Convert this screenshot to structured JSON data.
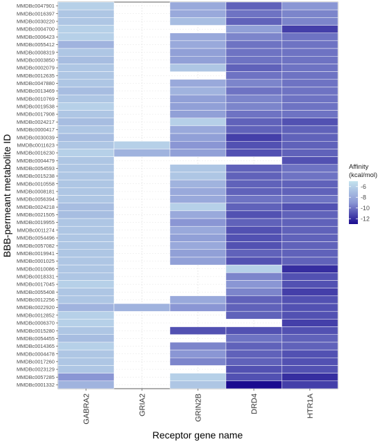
{
  "chart_data": {
    "type": "heatmap",
    "xlabel": "Receptor gene name",
    "ylabel": "BBB-permeant metabolite ID",
    "legend": {
      "title_lines": [
        "Affinity",
        "(kcal/mol)"
      ],
      "ticks": [
        -6,
        -8,
        -10,
        -12
      ],
      "range": [
        -13,
        -5
      ],
      "placement": "right",
      "color_low": "#1a0b8f",
      "color_mid": "#8a96d4",
      "color_high": "#c4e3ee"
    },
    "grid": true,
    "columns": [
      "GABRA2",
      "GRIA2",
      "GRIN2B",
      "DRD4",
      "HTR1A"
    ],
    "rows": [
      "MMDBc0047901",
      "MMDBc0016397",
      "MMDBc0030220",
      "MMDBc0004700",
      "MMDBc0006423",
      "MMDBc0055412",
      "MMDBc0008319",
      "MMDBc0003850",
      "MMDBc0002079",
      "MMDBc0012635",
      "MMDBc0047880",
      "MMDBc0013469",
      "MMDBc0010769",
      "MMDBc0019538",
      "MMDBc0017908",
      "MMDBc0024217",
      "MMDBc0000417",
      "MMDBc0030039",
      "MMDBc0011623",
      "MMDBc0016230",
      "MMDBc0004479",
      "MMDBc0054593",
      "MMDBc0015238",
      "MMDBc0010558",
      "MMDBc0008181",
      "MMDBc0056394",
      "MMDBc0024218",
      "MMDBc0021505",
      "MMDBc0019955",
      "MMDBc0011274",
      "MMDBc0054496",
      "MMDBc0057082",
      "MMDBc0019941",
      "MMDBc0001025",
      "MMDBc0010086",
      "MMDBc0018331",
      "MMDBc0017045",
      "MMDBc0055408",
      "MMDBc0012256",
      "MMDBc0022920",
      "MMDBc0012852",
      "MMDBc0006370",
      "MMDBc0015280",
      "MMDBc0054455",
      "MMDBc0014365",
      "MMDBc0004478",
      "MMDBc0017260",
      "MMDBc0023129",
      "MMDBc0057285",
      "MMDBc0001332"
    ],
    "values": [
      [
        -6.0,
        null,
        -8.0,
        -10.5,
        -9.0
      ],
      [
        -6.5,
        null,
        -8.0,
        -10.0,
        -9.5
      ],
      [
        -6.5,
        null,
        -7.0,
        -10.5,
        -9.5
      ],
      [
        -6.0,
        null,
        null,
        -8.5,
        -11.5
      ],
      [
        -6.0,
        null,
        -8.0,
        -9.5,
        -10.0
      ],
      [
        -7.5,
        null,
        -8.0,
        -10.0,
        -10.0
      ],
      [
        -6.5,
        null,
        -8.5,
        -10.0,
        -10.0
      ],
      [
        -7.0,
        null,
        -8.5,
        -10.0,
        -10.0
      ],
      [
        -6.5,
        null,
        -6.5,
        -10.5,
        -10.0
      ],
      [
        -6.5,
        null,
        null,
        -10.0,
        -10.0
      ],
      [
        -6.5,
        null,
        -8.0,
        -9.5,
        -10.0
      ],
      [
        -7.0,
        null,
        -7.5,
        -10.0,
        -10.0
      ],
      [
        -6.5,
        null,
        -8.5,
        -9.5,
        -10.0
      ],
      [
        -6.0,
        null,
        -8.5,
        -9.5,
        -10.0
      ],
      [
        -6.5,
        null,
        -8.5,
        -10.0,
        -10.0
      ],
      [
        -7.0,
        null,
        -6.0,
        -10.5,
        -11.0
      ],
      [
        -6.5,
        null,
        -8.0,
        -10.5,
        -10.5
      ],
      [
        -7.0,
        null,
        -8.5,
        -11.5,
        -10.5
      ],
      [
        -6.5,
        -6.0,
        -9.0,
        -11.0,
        -10.5
      ],
      [
        -6.0,
        -7.5,
        -8.5,
        -11.0,
        -10.5
      ],
      [
        -6.5,
        null,
        null,
        null,
        -11.0
      ],
      [
        -6.5,
        null,
        -6.5,
        -10.5,
        -10.0
      ],
      [
        -6.5,
        null,
        -6.5,
        -10.5,
        -10.0
      ],
      [
        -6.5,
        null,
        -7.5,
        -10.5,
        -10.5
      ],
      [
        -6.5,
        null,
        -8.0,
        -10.5,
        -10.5
      ],
      [
        -6.5,
        null,
        -8.0,
        -10.0,
        -10.0
      ],
      [
        -7.0,
        null,
        -6.0,
        -10.5,
        -11.0
      ],
      [
        -7.0,
        null,
        -8.0,
        -11.0,
        -10.5
      ],
      [
        -6.5,
        null,
        -9.0,
        -10.5,
        -10.5
      ],
      [
        -6.5,
        null,
        -8.0,
        -11.0,
        -10.5
      ],
      [
        -6.5,
        null,
        -8.5,
        -11.0,
        -10.5
      ],
      [
        -6.5,
        null,
        -8.0,
        -11.0,
        -10.5
      ],
      [
        -6.5,
        null,
        -8.5,
        -10.5,
        -10.5
      ],
      [
        -6.5,
        null,
        -8.5,
        -11.0,
        -10.5
      ],
      [
        -6.5,
        null,
        null,
        -6.0,
        -12.0
      ],
      [
        -6.5,
        null,
        null,
        -9.5,
        -11.0
      ],
      [
        -6.0,
        null,
        null,
        -9.0,
        -11.0
      ],
      [
        -6.5,
        null,
        null,
        -9.5,
        -11.5
      ],
      [
        -6.5,
        null,
        -8.0,
        -10.5,
        -11.0
      ],
      [
        -7.5,
        -7.5,
        -9.0,
        -10.5,
        -11.0
      ],
      [
        -6.0,
        null,
        null,
        -10.5,
        -11.0
      ],
      [
        -6.0,
        null,
        null,
        null,
        -11.5
      ],
      [
        -6.5,
        null,
        -11.0,
        -11.0,
        -11.0
      ],
      [
        -7.0,
        null,
        null,
        -10.0,
        -10.5
      ],
      [
        -6.0,
        null,
        -9.5,
        -10.5,
        -10.5
      ],
      [
        -6.5,
        null,
        -9.0,
        -10.5,
        -11.0
      ],
      [
        -6.5,
        null,
        -9.5,
        -10.5,
        -11.0
      ],
      [
        -6.5,
        null,
        null,
        -11.0,
        -11.0
      ],
      [
        -9.0,
        null,
        -6.0,
        -11.0,
        -12.0
      ],
      [
        -7.5,
        null,
        -6.5,
        -13.0,
        -11.5
      ]
    ]
  }
}
